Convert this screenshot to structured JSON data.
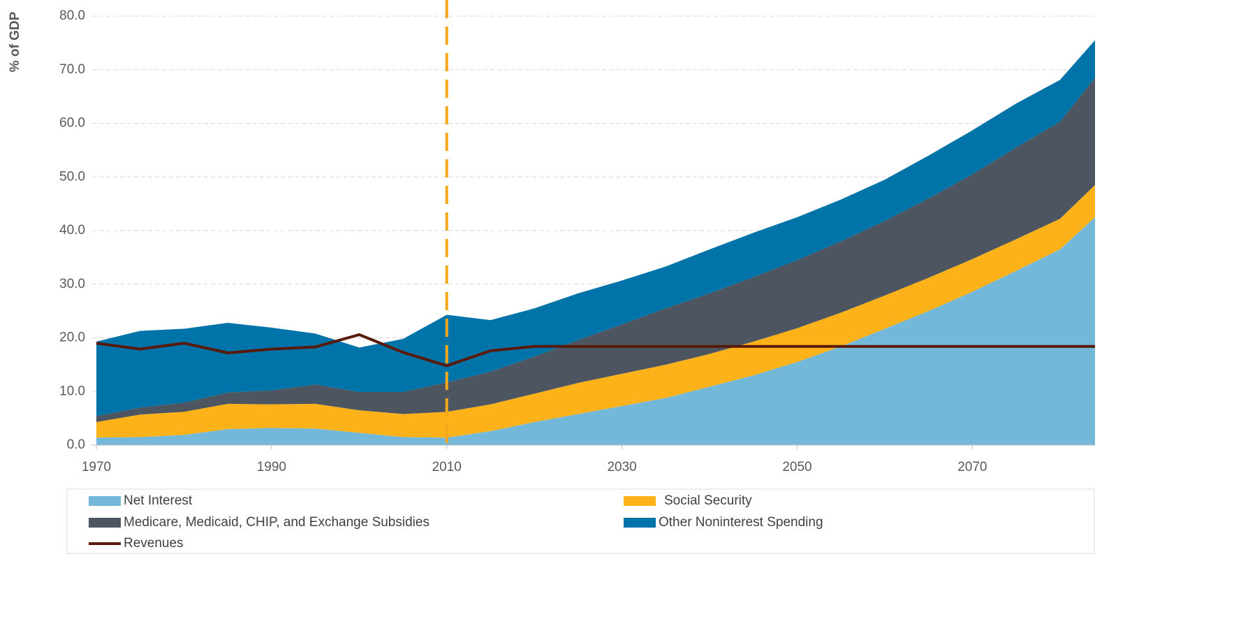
{
  "chart_data": {
    "type": "stacked_area",
    "y_label": "% of GDP",
    "x": [
      1970,
      1975,
      1980,
      1985,
      1990,
      1995,
      2000,
      2005,
      2010,
      2015,
      2020,
      2025,
      2030,
      2035,
      2040,
      2045,
      2050,
      2055,
      2060,
      2065,
      2070,
      2075,
      2080,
      2084
    ],
    "series": [
      {
        "name": "Net Interest",
        "color": "#74b8d9",
        "values": [
          1.4,
          1.5,
          1.9,
          3.0,
          3.2,
          3.1,
          2.3,
          1.5,
          1.4,
          2.6,
          4.3,
          5.8,
          7.3,
          8.8,
          10.9,
          13.0,
          15.5,
          18.4,
          21.7,
          25.0,
          28.6,
          32.5,
          36.5,
          42.5
        ]
      },
      {
        "name": "Social Security",
        "color": "#fdb219",
        "values": [
          2.9,
          4.2,
          4.3,
          4.7,
          4.4,
          4.6,
          4.2,
          4.3,
          4.8,
          5.0,
          5.3,
          5.8,
          6.0,
          6.2,
          6.1,
          6.3,
          6.3,
          6.3,
          6.2,
          6.2,
          6.1,
          5.9,
          5.7,
          6.0
        ]
      },
      {
        "name": "Medicare, Medicaid, CHIP, and Exchange Subsidies",
        "color": "#4d5660",
        "values": [
          1.1,
          1.3,
          1.7,
          2.1,
          2.6,
          3.6,
          3.4,
          4.1,
          5.5,
          6.1,
          6.9,
          8.0,
          9.2,
          10.5,
          11.3,
          12.0,
          12.7,
          13.3,
          13.9,
          14.8,
          15.8,
          17.1,
          18.1,
          20.0
        ]
      },
      {
        "name": "Other Noninterest Spending",
        "color": "#0073a8",
        "values": [
          13.9,
          14.3,
          13.8,
          13.0,
          11.7,
          9.5,
          8.3,
          9.9,
          12.6,
          9.6,
          9.0,
          8.7,
          8.2,
          7.8,
          8.2,
          8.3,
          8.0,
          7.8,
          7.7,
          8.0,
          8.2,
          8.2,
          7.8,
          7.0
        ]
      },
      {
        "name": "Revenues",
        "color": "#5a1a0a",
        "kind": "line",
        "values": [
          19.0,
          17.9,
          19.0,
          17.2,
          17.9,
          18.3,
          20.6,
          17.3,
          14.8,
          17.6,
          18.4,
          18.4,
          18.4,
          18.4,
          18.4,
          18.4,
          18.4,
          18.4,
          18.4,
          18.4,
          18.4,
          18.4,
          18.4,
          18.4
        ]
      }
    ],
    "reference_line": {
      "x": 2010,
      "color": "#f5a81c"
    },
    "xlim": [
      1970,
      2084
    ],
    "xticks": [
      1970,
      1990,
      2010,
      2030,
      2050,
      2070
    ],
    "ylim": [
      0,
      83
    ],
    "yticks": [
      {
        "value": 0,
        "label": "0.0"
      },
      {
        "value": 10,
        "label": "10.0"
      },
      {
        "value": 20,
        "label": "20.0"
      },
      {
        "value": 30,
        "label": "30.0"
      },
      {
        "value": 40,
        "label": "40.0"
      },
      {
        "value": 50,
        "label": "50.0"
      },
      {
        "value": 60,
        "label": "60.0"
      },
      {
        "value": 70,
        "label": "70.0"
      },
      {
        "value": 80,
        "label": "80.0"
      }
    ],
    "grid": true
  }
}
